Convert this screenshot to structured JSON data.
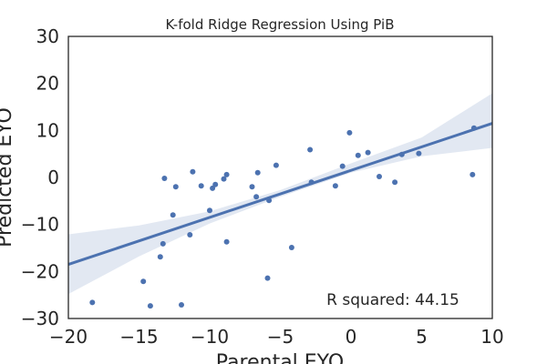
{
  "chart_data": {
    "type": "scatter",
    "title": "K-fold Ridge Regression Using PiB",
    "xlabel": "Parental EYO",
    "ylabel": "Predicted EYO",
    "xlim": [
      -20,
      10
    ],
    "ylim": [
      -30,
      30
    ],
    "xticks": [
      "−20",
      "−15",
      "−10",
      "−5",
      "0",
      "5",
      "10"
    ],
    "yticks": [
      "30",
      "20",
      "10",
      "0",
      "−10",
      "−20",
      "−30"
    ],
    "grid": false,
    "annotation": "R squared: 44.15",
    "colors": {
      "points": "#4c72b0",
      "line": "#4c72b0",
      "band": "#dfe5f1"
    },
    "points": [
      {
        "x": -18.3,
        "y": -26.6
      },
      {
        "x": -14.7,
        "y": -22.1
      },
      {
        "x": -14.2,
        "y": -27.3
      },
      {
        "x": -13.5,
        "y": -16.9
      },
      {
        "x": -13.3,
        "y": -14.1
      },
      {
        "x": -13.2,
        "y": -0.2
      },
      {
        "x": -12.6,
        "y": -8.0
      },
      {
        "x": -12.4,
        "y": -2.0
      },
      {
        "x": -12.0,
        "y": -27.1
      },
      {
        "x": -11.4,
        "y": -12.2
      },
      {
        "x": -11.2,
        "y": 1.2
      },
      {
        "x": -10.6,
        "y": -1.8
      },
      {
        "x": -10.0,
        "y": -7.0
      },
      {
        "x": -9.8,
        "y": -2.3
      },
      {
        "x": -9.6,
        "y": -1.5
      },
      {
        "x": -9.0,
        "y": -0.3
      },
      {
        "x": -8.8,
        "y": 0.6
      },
      {
        "x": -8.8,
        "y": -13.7
      },
      {
        "x": -7.0,
        "y": -2.0
      },
      {
        "x": -6.7,
        "y": -4.1
      },
      {
        "x": -6.6,
        "y": 1.0
      },
      {
        "x": -5.9,
        "y": -21.4
      },
      {
        "x": -5.8,
        "y": -4.9
      },
      {
        "x": -5.3,
        "y": 2.6
      },
      {
        "x": -4.2,
        "y": -14.9
      },
      {
        "x": -2.9,
        "y": 5.9
      },
      {
        "x": -2.8,
        "y": -1.0
      },
      {
        "x": -1.1,
        "y": -1.8
      },
      {
        "x": -0.6,
        "y": 2.4
      },
      {
        "x": -0.1,
        "y": 9.5
      },
      {
        "x": 0.5,
        "y": 4.7
      },
      {
        "x": 1.2,
        "y": 5.3
      },
      {
        "x": 2.0,
        "y": 0.2
      },
      {
        "x": 3.1,
        "y": -1.0
      },
      {
        "x": 3.6,
        "y": 4.9
      },
      {
        "x": 4.8,
        "y": 5.1
      },
      {
        "x": 8.6,
        "y": 0.6
      },
      {
        "x": 8.7,
        "y": 10.5
      }
    ],
    "regression": {
      "x": [
        -20,
        10
      ],
      "y": [
        -18.5,
        11.5
      ]
    },
    "confidence_band": [
      {
        "x": -20,
        "low": -24.8,
        "high": -12.1
      },
      {
        "x": -15,
        "low": -16.8,
        "high": -10.2
      },
      {
        "x": -10,
        "low": -9.8,
        "high": -7.2
      },
      {
        "x": -5,
        "low": -4.1,
        "high": -2.7
      },
      {
        "x": 0,
        "low": 1.0,
        "high": 3.0
      },
      {
        "x": 5,
        "low": 4.5,
        "high": 8.5
      },
      {
        "x": 10,
        "low": 6.3,
        "high": 17.9
      }
    ]
  }
}
